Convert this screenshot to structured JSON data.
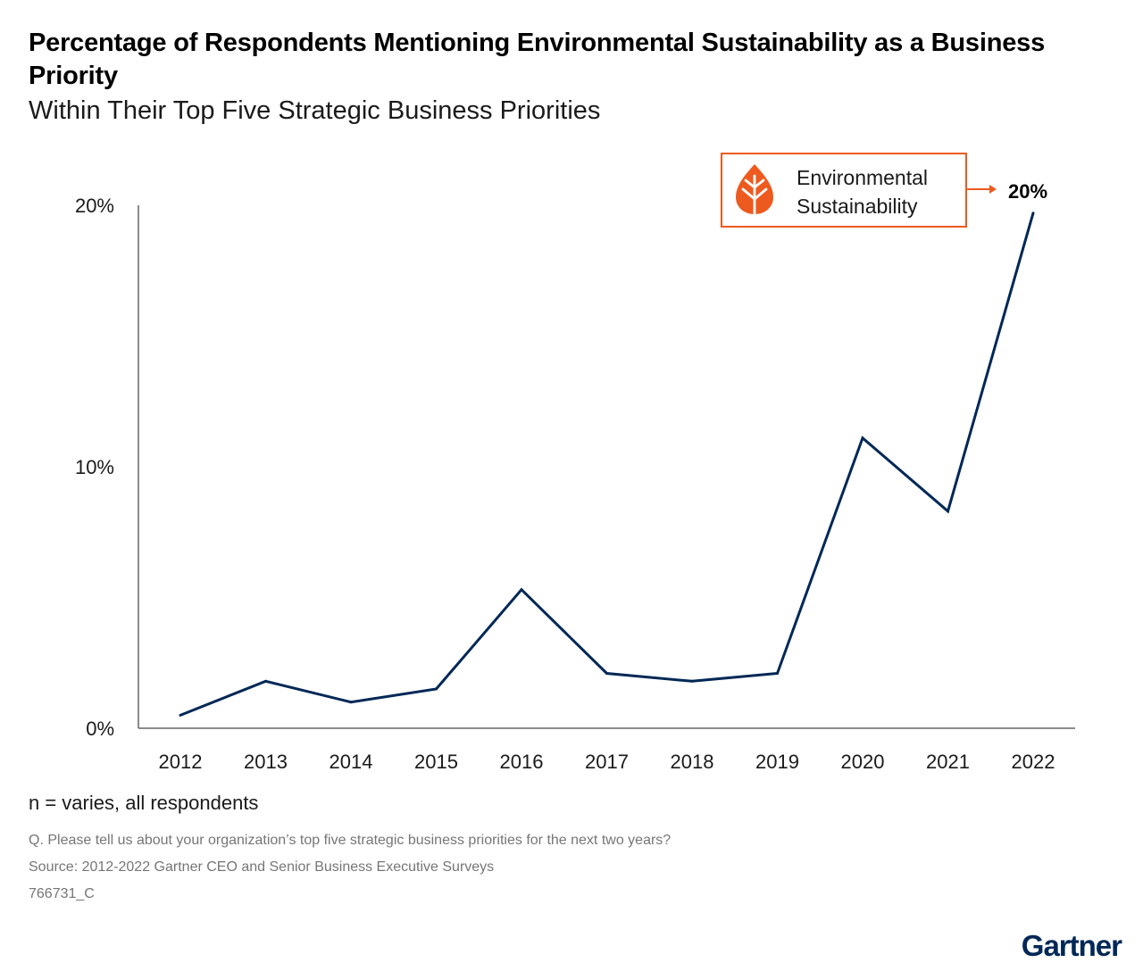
{
  "title": "Percentage of Respondents Mentioning Environmental Sustainability as a Business Priority",
  "subtitle": "Within Their Top Five Strategic Business Priorities",
  "note": "n = varies, all respondents",
  "footnotes": {
    "question": "Q. Please tell us about your organization’s top five strategic business priorities for the next two years?",
    "source": "Source: 2012-2022 Gartner CEO and Senior Business Executive Surveys",
    "code": "766731_C"
  },
  "brand": "Gartner",
  "colors": {
    "line": "#002856",
    "accent": "#ED5A1F",
    "axis": "#666666",
    "brand": "#002856"
  },
  "legend": {
    "line1": "Environmental",
    "line2": "Sustainability",
    "icon": "leaf-icon",
    "arrow_icon": "arrow-right-icon"
  },
  "chart_data": {
    "type": "line",
    "title": "Percentage of Respondents Mentioning Environmental Sustainability as a Business Priority",
    "subtitle": "Within Their Top Five Strategic Business Priorities",
    "categories": [
      "2012",
      "2013",
      "2014",
      "2015",
      "2016",
      "2017",
      "2018",
      "2019",
      "2020",
      "2021",
      "2022"
    ],
    "series": [
      {
        "name": "Environmental Sustainability",
        "values": [
          0.5,
          1.8,
          1.0,
          1.5,
          5.3,
          2.1,
          1.8,
          2.1,
          11.1,
          8.3,
          19.7
        ]
      }
    ],
    "yticks": [
      {
        "value": 0,
        "label": "0%"
      },
      {
        "value": 10,
        "label": "10%"
      },
      {
        "value": 20,
        "label": "20%"
      }
    ],
    "ylim": [
      0,
      20
    ],
    "end_label": "20%",
    "xlabel": "",
    "ylabel": "",
    "grid": false,
    "legend_position": "top-right"
  }
}
